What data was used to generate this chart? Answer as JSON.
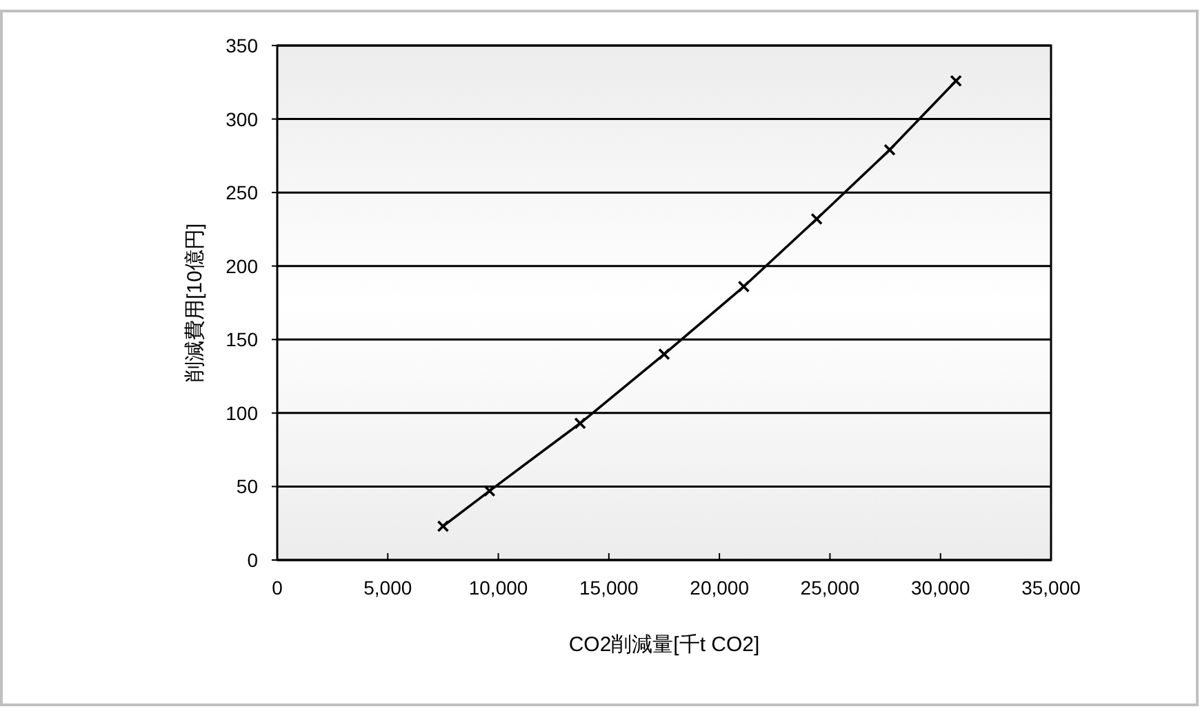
{
  "chart_data": {
    "type": "line",
    "xlabel": "CO2削減量[千t CO2]",
    "ylabel": "削減費用[10億円]",
    "x": [
      7500,
      9600,
      13700,
      17500,
      21100,
      24400,
      27700,
      30700
    ],
    "series": [
      {
        "color": "#000000",
        "values": [
          23,
          47,
          93,
          140,
          186,
          232,
          279,
          326
        ]
      }
    ],
    "marker": "cross",
    "line_style": "solid",
    "grid": "y",
    "xlim": [
      0,
      35000
    ],
    "xticks": [
      {
        "value": 0,
        "label": "0"
      },
      {
        "value": 5000,
        "label": "5,000"
      },
      {
        "value": 10000,
        "label": "10,000"
      },
      {
        "value": 15000,
        "label": "15,000"
      },
      {
        "value": 20000,
        "label": "20,000"
      },
      {
        "value": 25000,
        "label": "25,000"
      },
      {
        "value": 30000,
        "label": "30,000"
      },
      {
        "value": 35000,
        "label": "35,000"
      }
    ],
    "ylim": [
      0,
      350
    ],
    "yticks": [
      0,
      50,
      100,
      150,
      200,
      250,
      300,
      350
    ]
  }
}
